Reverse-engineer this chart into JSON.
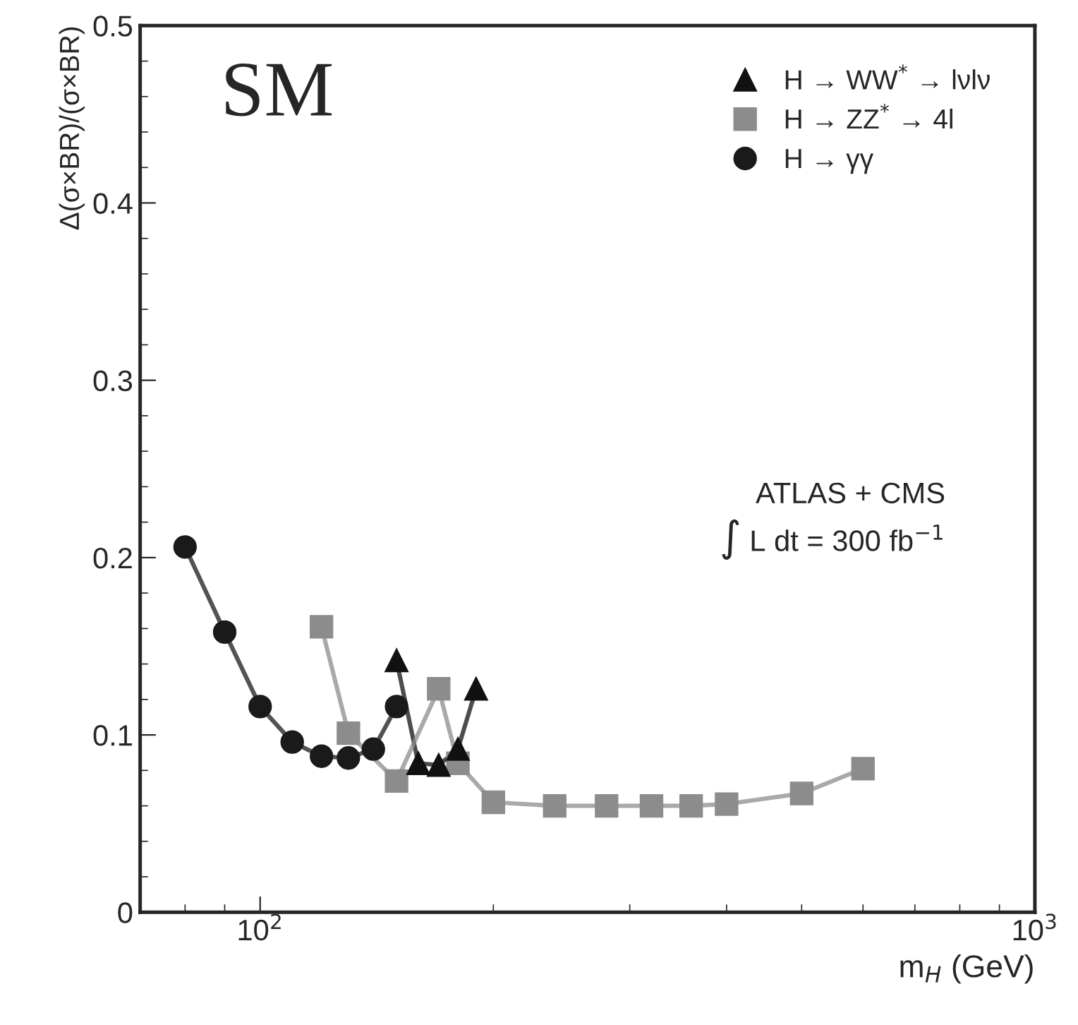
{
  "chart_data": {
    "type": "line",
    "xlabel": "m$_{H}$ (GeV)",
    "ylabel": "Δ(σ×BR)/(σ×BR)",
    "log": "x",
    "xlim": [
      70,
      1000
    ],
    "xticks": [
      {
        "value": 100,
        "label": "10$^{2}$"
      },
      {
        "value": 1000,
        "label": "10$^{3}$"
      }
    ],
    "ylim": [
      0,
      0.5
    ],
    "yticks": [
      0,
      0.1,
      0.2,
      0.3,
      0.4,
      0.5
    ],
    "grid": false,
    "legend": "top right",
    "line_style": "solid",
    "series": [
      {
        "name": "H → WW$^{*}$ → lνlν",
        "color": "#111111",
        "marker": "triangle",
        "x": [
          150,
          160,
          170,
          180,
          190
        ],
        "values": [
          0.142,
          0.084,
          0.083,
          0.092,
          0.126
        ]
      },
      {
        "name": "H → ZZ$^{*}$ → 4l",
        "color": "#8c8c8c",
        "marker": "square",
        "x": [
          120,
          130,
          150,
          170,
          180,
          200,
          240,
          280,
          320,
          360,
          400,
          500,
          600
        ],
        "values": [
          0.161,
          0.101,
          0.074,
          0.126,
          0.084,
          0.062,
          0.06,
          0.06,
          0.06,
          0.06,
          0.061,
          0.067,
          0.081
        ]
      },
      {
        "name": "H → γγ",
        "color": "#1a1a1a",
        "marker": "circle",
        "x": [
          80,
          90,
          100,
          110,
          120,
          130,
          140,
          150
        ],
        "values": [
          0.206,
          0.158,
          0.116,
          0.096,
          0.088,
          0.087,
          0.092,
          0.116
        ]
      }
    ],
    "annotations": [
      "SM",
      "ATLAS + CMS",
      "∫ L dt = 300 fb$^{−1}$"
    ]
  }
}
